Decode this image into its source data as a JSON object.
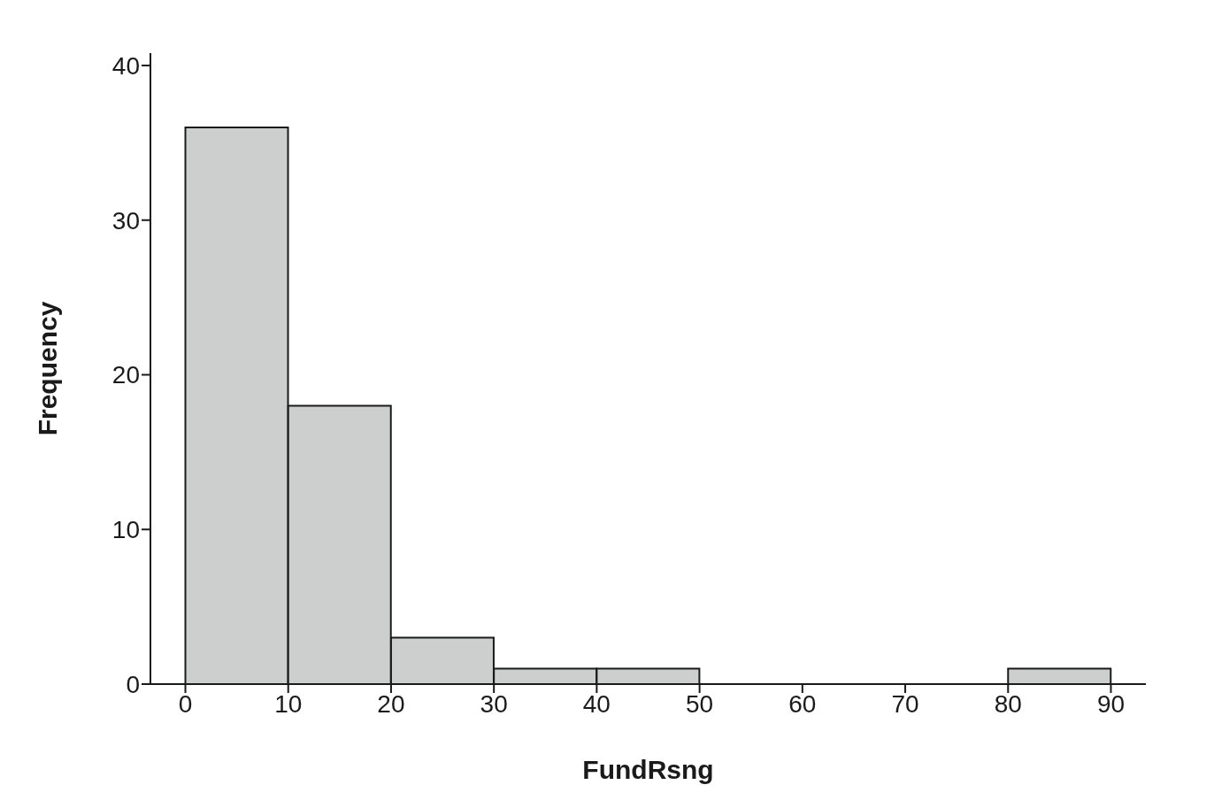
{
  "chart_data": {
    "type": "histogram",
    "xlabel": "FundRsng",
    "ylabel": "Frequency",
    "bins": [
      0,
      10,
      20,
      30,
      40,
      50,
      60,
      70,
      80,
      90
    ],
    "values": [
      36,
      18,
      3,
      1,
      1,
      0,
      0,
      0,
      1
    ],
    "color": "#cdcfce",
    "xlim": [
      -3.4,
      93.4
    ],
    "xticks": [
      0,
      10,
      20,
      30,
      40,
      50,
      60,
      70,
      80,
      90
    ],
    "ylim": [
      0,
      40.8
    ],
    "yticks": [
      0,
      10,
      20,
      30,
      40
    ]
  }
}
